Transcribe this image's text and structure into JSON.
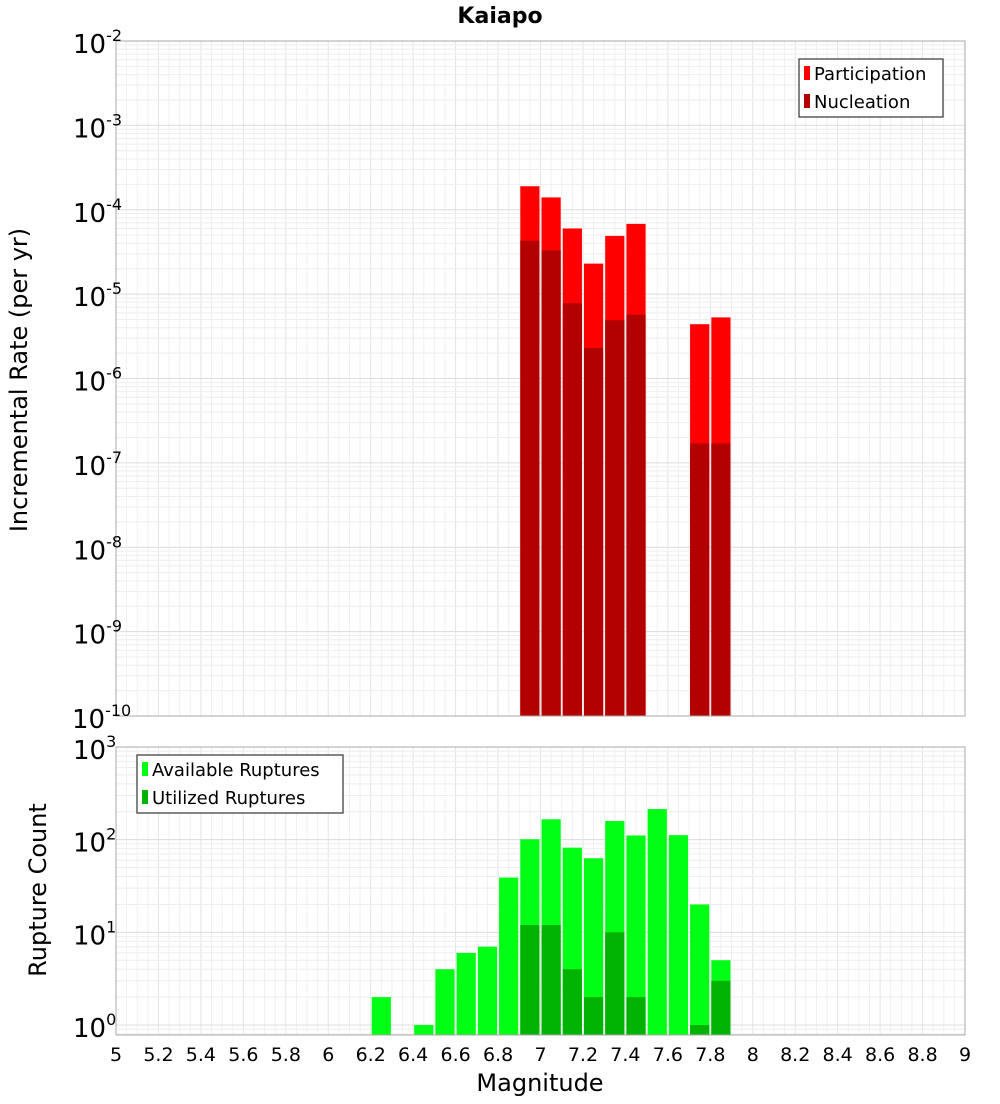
{
  "chart_data": [
    {
      "type": "bar",
      "title": "Kaiapo",
      "ylabel": "Incremental Rate (per yr)",
      "xlabel": "",
      "yscale": "log",
      "ylim": [
        1e-10,
        0.01
      ],
      "xlim": [
        5,
        9
      ],
      "grid": true,
      "legend_position": "top-right",
      "series": [
        {
          "name": "Participation",
          "color": "#ff0000",
          "x": [
            6.95,
            7.05,
            7.15,
            7.25,
            7.35,
            7.45,
            7.75,
            7.85
          ],
          "values": [
            0.00019,
            0.00014,
            6e-05,
            2.3e-05,
            4.9e-05,
            6.8e-05,
            4.4e-06,
            5.3e-06
          ]
        },
        {
          "name": "Nucleation",
          "color": "#b30000",
          "x": [
            6.95,
            7.05,
            7.15,
            7.25,
            7.35,
            7.45,
            7.75,
            7.85
          ],
          "values": [
            4.3e-05,
            3.3e-05,
            7.8e-06,
            2.3e-06,
            4.9e-06,
            5.7e-06,
            1.7e-07,
            1.7e-07
          ]
        }
      ],
      "y_tick_exponents": [
        "-10",
        "-9",
        "-8",
        "-7",
        "-6",
        "-5",
        "-4",
        "-3",
        "-2"
      ],
      "y_tick_base": "10"
    },
    {
      "type": "bar",
      "title": "",
      "ylabel": "Rupture Count",
      "xlabel": "Magnitude",
      "yscale": "log",
      "ylim": [
        0.78,
        1000
      ],
      "xlim": [
        5,
        9
      ],
      "grid": true,
      "legend_position": "top-left",
      "series": [
        {
          "name": "Available Ruptures",
          "color": "#00ff14",
          "x": [
            6.25,
            6.45,
            6.55,
            6.65,
            6.75,
            6.85,
            6.95,
            7.05,
            7.15,
            7.25,
            7.35,
            7.45,
            7.55,
            7.65,
            7.75,
            7.85
          ],
          "values": [
            2,
            1,
            4,
            6,
            7,
            39,
            101,
            166,
            82,
            63,
            159,
            111,
            214,
            112,
            20,
            5
          ]
        },
        {
          "name": "Utilized Ruptures",
          "color": "#00b300",
          "x": [
            6.95,
            7.05,
            7.15,
            7.25,
            7.35,
            7.45,
            7.75,
            7.85
          ],
          "values": [
            12,
            12,
            4,
            2,
            10,
            2,
            1,
            3
          ]
        }
      ],
      "y_tick_exponents": [
        "0",
        "1",
        "2",
        "3"
      ],
      "y_tick_base": "10",
      "x_ticks": [
        "5",
        "5.2",
        "5.4",
        "5.6",
        "5.8",
        "6",
        "6.2",
        "6.4",
        "6.6",
        "6.8",
        "7",
        "7.2",
        "7.4",
        "7.6",
        "7.8",
        "8",
        "8.2",
        "8.4",
        "8.6",
        "8.8",
        "9"
      ]
    }
  ]
}
